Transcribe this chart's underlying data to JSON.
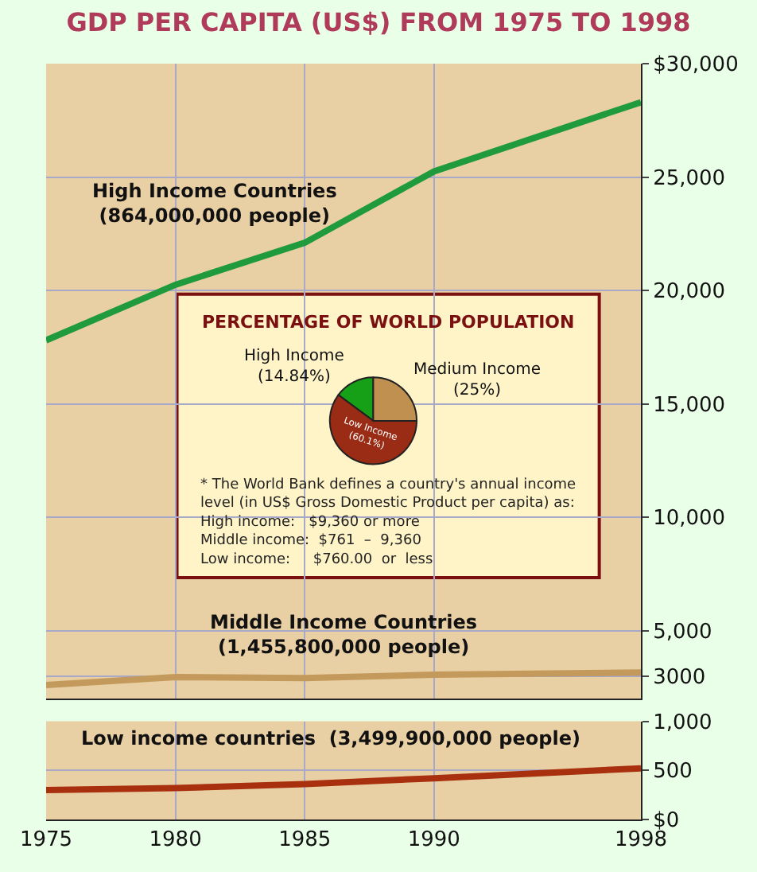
{
  "chart_data": [
    {
      "type": "line",
      "title": "GDP PER CAPITA (US$) FROM 1975 TO 1998",
      "x": [
        1975,
        1980,
        1985,
        1990,
        1998
      ],
      "xlim": [
        1975,
        1998
      ],
      "xticks": [
        1975,
        1980,
        1985,
        1990,
        1998
      ],
      "ylim": [
        2000,
        30000
      ],
      "yticks": [
        3000,
        {
          "value": 5000,
          "label": "5,000"
        },
        {
          "value": 10000,
          "label": "10,000"
        },
        {
          "value": 15000,
          "label": "15,000"
        },
        {
          "value": 20000,
          "label": "20,000"
        },
        {
          "value": 25000,
          "label": "25,000"
        },
        {
          "value": 30000,
          "label": "$30,000"
        }
      ],
      "tick_labels": "y",
      "grid": true,
      "series": [
        {
          "name": "High Income Countries\n(864,000,000 people)",
          "color": "#1f9a3c",
          "values": [
            17800,
            20250,
            22100,
            25250,
            28300
          ]
        },
        {
          "name": "Middle Income Countries\n(1,455,800,000 people)",
          "color": "#c49a5c",
          "values": [
            2600,
            2950,
            2900,
            3050,
            3150
          ]
        }
      ]
    },
    {
      "type": "line",
      "x": [
        1975,
        1980,
        1985,
        1990,
        1998
      ],
      "xlim": [
        1975,
        1998
      ],
      "xticks": [
        1975,
        1980,
        1985,
        1990,
        1998
      ],
      "ylim": [
        0,
        1000
      ],
      "yticks": [
        {
          "value": 0,
          "label": "$0"
        },
        500,
        {
          "value": 1000,
          "label": "1,000"
        }
      ],
      "grid": true,
      "series": [
        {
          "name": "Low income countries  (3,499,900,000 people)",
          "color": "#a8300e",
          "values": [
            300,
            320,
            360,
            420,
            520
          ]
        }
      ]
    },
    {
      "type": "pie",
      "title": "PERCENTAGE OF WORLD POPULATION",
      "categories": [
        "High Income",
        "Medium Income",
        "Low Income"
      ],
      "values": [
        14.84,
        25,
        60.1
      ],
      "colors": [
        "#16a018",
        "#c09050",
        "#9a2c16"
      ],
      "value_labels": [
        "(14.84%)",
        "(25%)",
        "(60.1%)"
      ],
      "annotations": [
        "* The World Bank defines a country's annual income\nlevel (in US$ Gross Domestic Product per capita) as:\nHigh income:   $9,360 or more\nMiddle income:  $761  –  9,360\nLow income:     $760.00  or  less"
      ]
    }
  ]
}
